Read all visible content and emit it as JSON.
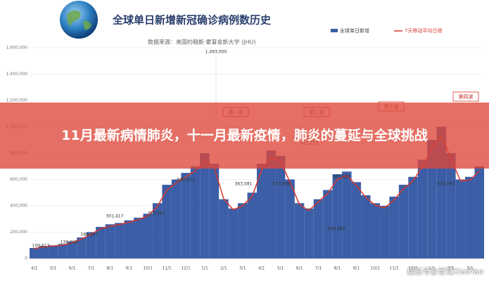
{
  "headline": "11月最新病情肺炎，十一月最新疫情，肺炎的蔓延与全球挑战",
  "watermark": "搜狐号@雪鹭XiaoYao",
  "chart_data": {
    "type": "bar",
    "title": "全球单日新增新冠确诊病例数历史",
    "subtitle": "数据来源：美国约翰斯·霍普金斯大学 (JHU)",
    "categories": [
      "4/1",
      null,
      "5/1",
      null,
      "6/1",
      null,
      "7/1",
      null,
      "8/1",
      null,
      "9/1",
      null,
      "10/1",
      null,
      "11/1",
      null,
      "12/1",
      null,
      "1/1",
      null,
      "2/1",
      null,
      "3/1",
      null,
      "4/1",
      null,
      "5/1",
      null,
      "6/1",
      null,
      "7/1",
      null,
      "8/1",
      null,
      "9/1",
      null,
      "10/1",
      null,
      "11/1",
      null,
      "12/1",
      null,
      "1/1",
      null,
      "2/1",
      null,
      "3/1",
      null
    ],
    "series": [
      {
        "name": "全球单日新增",
        "color": "#3b5ea6",
        "values": [
          80000,
          95000,
          100000,
          110000,
          130000,
          160000,
          200000,
          240000,
          260000,
          270000,
          290000,
          310000,
          340000,
          420000,
          560000,
          600000,
          650000,
          700000,
          800000,
          720000,
          450000,
          380000,
          420000,
          500000,
          720000,
          820000,
          780000,
          600000,
          420000,
          380000,
          450000,
          520000,
          640000,
          660000,
          580000,
          480000,
          420000,
          400000,
          470000,
          560000,
          620000,
          750000,
          900000,
          1000000,
          800000,
          600000,
          620000,
          700000
        ]
      },
      {
        "name": "7天移动平均日增",
        "color": "#d9372e",
        "values": [
          75000,
          88000,
          95000,
          102000,
          120000,
          148000,
          185000,
          225000,
          245000,
          258000,
          275000,
          295000,
          325000,
          395000,
          520000,
          575000,
          620000,
          665000,
          740000,
          690000,
          455000,
          370000,
          400000,
          470000,
          670000,
          770000,
          740000,
          580000,
          410000,
          365000,
          430000,
          495000,
          600000,
          630000,
          555000,
          465000,
          405000,
          385000,
          445000,
          530000,
          590000,
          700000,
          840000,
          930000,
          760000,
          590000,
          595000,
          665000
        ]
      }
    ],
    "ylim": [
      0,
      1600000
    ],
    "yticks": [
      0,
      {
        "value": 200000,
        "label": "200,000"
      },
      {
        "value": 400000,
        "label": "400,000"
      },
      {
        "value": 600000,
        "label": "600,000"
      },
      {
        "value": 800000,
        "label": "800,000"
      },
      {
        "value": 1000000,
        "label": "1,000,000"
      },
      {
        "value": 1200000,
        "label": "1,200,000"
      },
      {
        "value": 1400000,
        "label": "1,400,000"
      },
      {
        "value": 1600000,
        "label": "1,600,000"
      }
    ],
    "grid": true,
    "legend": "top-right",
    "annotations": [
      "1,493,000",
      "第一波",
      "第二波",
      "第三波",
      "第四波",
      "100,617",
      "136,608",
      "180,367",
      "301,417",
      "323,583",
      "560,423",
      "363,581",
      "553,588",
      "827,213",
      "563,637",
      "269,484",
      "530,093"
    ]
  }
}
